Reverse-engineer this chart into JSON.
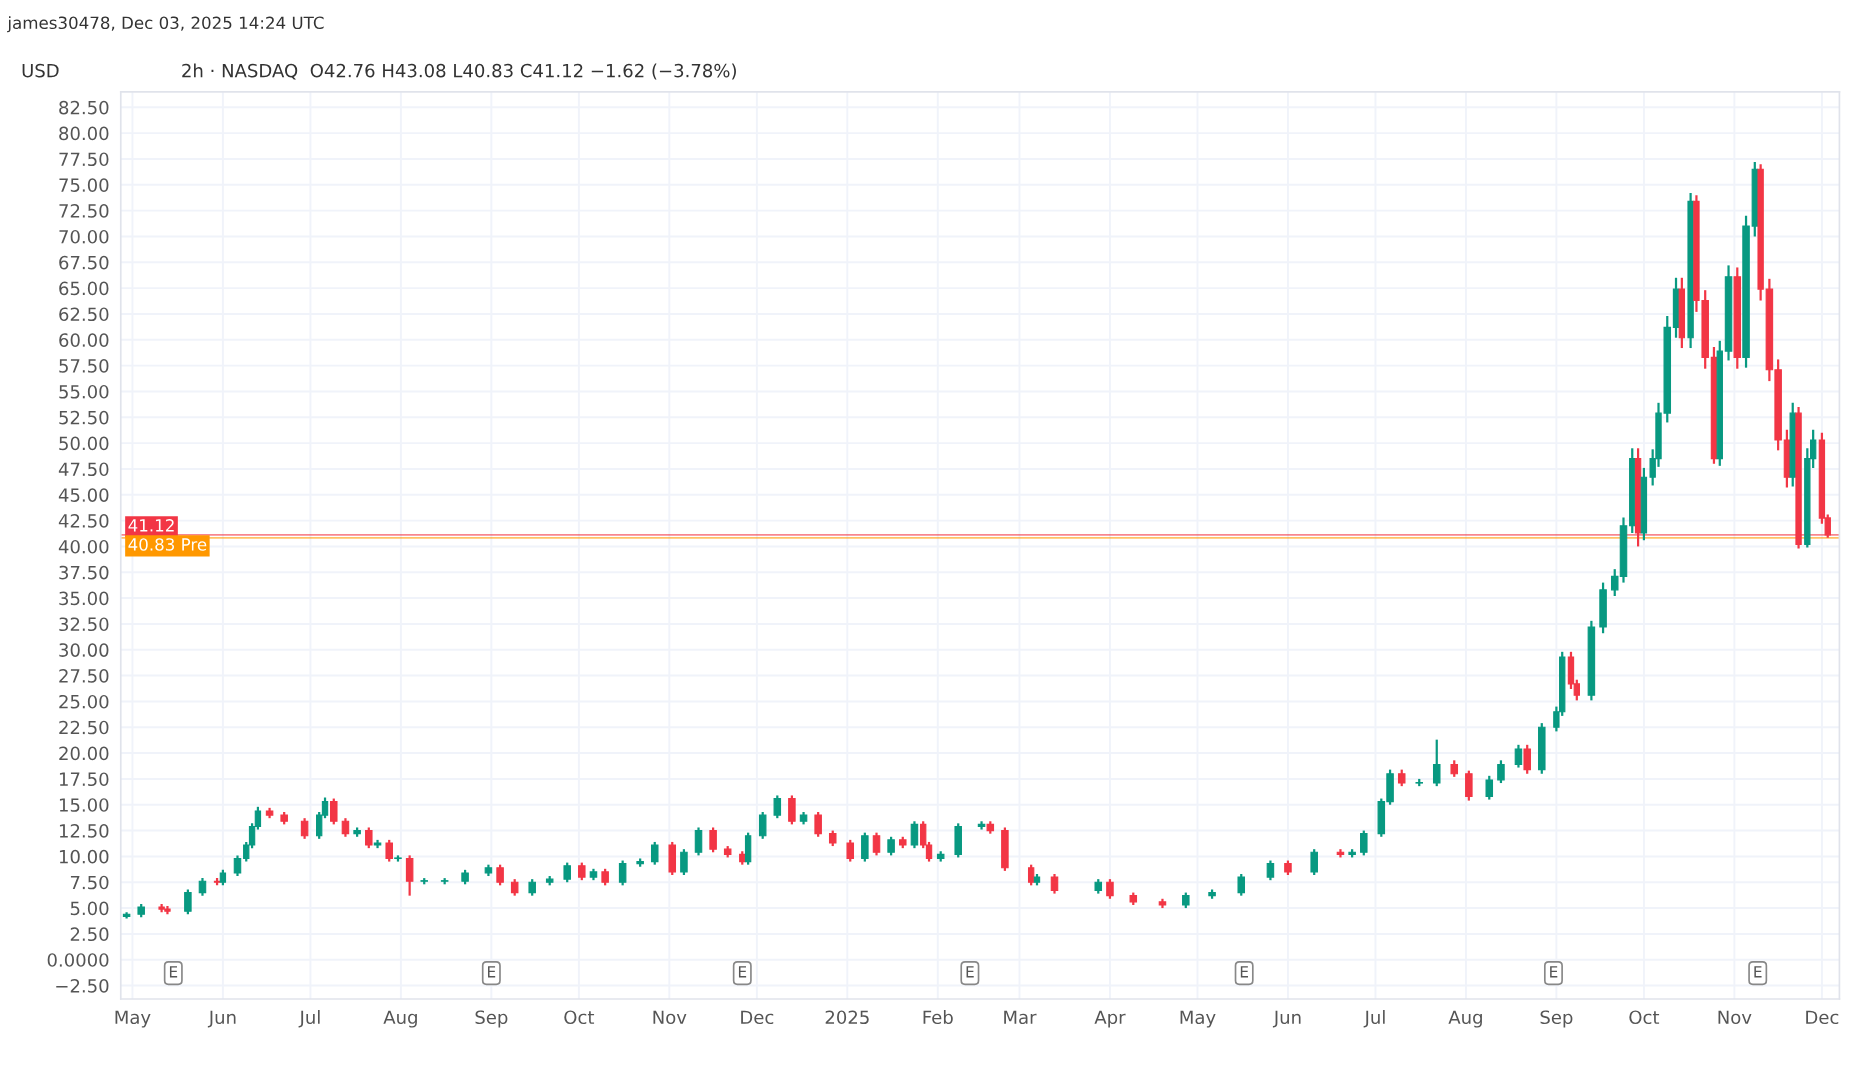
{
  "chart_data": {
    "type": "candlestick",
    "title": "2h · NASDAQ  O42.76 H43.08 L40.83 C41.12 −1.62 (−3.78%)",
    "subtitle": "james30478, Dec 03, 2025 14:24 UTC",
    "ylabel": "USD",
    "x": [
      "2024-04-29",
      "2024-05-04",
      "2024-05-11",
      "2024-05-13",
      "2024-05-20",
      "2024-05-25",
      "2024-05-30",
      "2024-06-01",
      "2024-06-06",
      "2024-06-09",
      "2024-06-11",
      "2024-06-13",
      "2024-06-17",
      "2024-06-22",
      "2024-06-29",
      "2024-07-04",
      "2024-07-06",
      "2024-07-09",
      "2024-07-13",
      "2024-07-17",
      "2024-07-21",
      "2024-07-24",
      "2024-07-28",
      "2024-07-31",
      "2024-08-04",
      "2024-08-09",
      "2024-08-16",
      "2024-08-23",
      "2024-08-31",
      "2024-09-04",
      "2024-09-09",
      "2024-09-15",
      "2024-09-21",
      "2024-09-27",
      "2024-10-02",
      "2024-10-06",
      "2024-10-10",
      "2024-10-16",
      "2024-10-22",
      "2024-10-27",
      "2024-11-02",
      "2024-11-06",
      "2024-11-11",
      "2024-11-16",
      "2024-11-21",
      "2024-11-26",
      "2024-11-28",
      "2024-12-03",
      "2024-12-08",
      "2024-12-13",
      "2024-12-17",
      "2024-12-22",
      "2024-12-27",
      "2025-01-02",
      "2025-01-07",
      "2025-01-11",
      "2025-01-16",
      "2025-01-20",
      "2025-01-24",
      "2025-01-27",
      "2025-01-29",
      "2025-02-02",
      "2025-02-08",
      "2025-02-16",
      "2025-02-19",
      "2025-02-24",
      "2025-03-05",
      "2025-03-07",
      "2025-03-13",
      "2025-03-28",
      "2025-04-01",
      "2025-04-09",
      "2025-04-19",
      "2025-04-27",
      "2025-05-06",
      "2025-05-16",
      "2025-05-26",
      "2025-06-01",
      "2025-06-10",
      "2025-06-19",
      "2025-06-23",
      "2025-06-27",
      "2025-07-03",
      "2025-07-06",
      "2025-07-10",
      "2025-07-16",
      "2025-07-22",
      "2025-07-28",
      "2025-08-02",
      "2025-08-09",
      "2025-08-13",
      "2025-08-19",
      "2025-08-22",
      "2025-08-27",
      "2025-09-01",
      "2025-09-03",
      "2025-09-06",
      "2025-09-08",
      "2025-09-13",
      "2025-09-17",
      "2025-09-21",
      "2025-09-24",
      "2025-09-27",
      "2025-09-29",
      "2025-10-01",
      "2025-10-04",
      "2025-10-06",
      "2025-10-09",
      "2025-10-12",
      "2025-10-14",
      "2025-10-17",
      "2025-10-19",
      "2025-10-22",
      "2025-10-25",
      "2025-10-27",
      "2025-10-30",
      "2025-11-02",
      "2025-11-05",
      "2025-11-08",
      "2025-11-10",
      "2025-11-13",
      "2025-11-16",
      "2025-11-19",
      "2025-11-21",
      "2025-11-23",
      "2025-11-26",
      "2025-11-28",
      "2025-12-01",
      "2025-12-03"
    ],
    "ohlc": [
      [
        4.2,
        4.6,
        4.0,
        4.4
      ],
      [
        4.4,
        5.4,
        4.1,
        5.1
      ],
      [
        5.1,
        5.4,
        4.6,
        4.9
      ],
      [
        4.9,
        5.2,
        4.4,
        4.7
      ],
      [
        4.7,
        6.8,
        4.4,
        6.5
      ],
      [
        6.5,
        7.9,
        6.2,
        7.6
      ],
      [
        7.6,
        7.9,
        7.2,
        7.5
      ],
      [
        7.5,
        8.7,
        7.2,
        8.4
      ],
      [
        8.4,
        10.1,
        8.1,
        9.8
      ],
      [
        9.8,
        11.4,
        9.5,
        11.1
      ],
      [
        11.1,
        13.2,
        10.8,
        12.9
      ],
      [
        12.9,
        14.8,
        12.6,
        14.4
      ],
      [
        14.4,
        14.7,
        13.7,
        14.0
      ],
      [
        14.0,
        14.3,
        13.1,
        13.4
      ],
      [
        13.4,
        13.7,
        11.7,
        12.0
      ],
      [
        12.0,
        14.3,
        11.7,
        14.0
      ],
      [
        14.0,
        15.7,
        13.7,
        15.3
      ],
      [
        15.3,
        15.6,
        13.1,
        13.4
      ],
      [
        13.4,
        13.7,
        11.9,
        12.2
      ],
      [
        12.2,
        12.8,
        11.9,
        12.5
      ],
      [
        12.5,
        12.8,
        10.8,
        11.1
      ],
      [
        11.1,
        11.6,
        10.8,
        11.3
      ],
      [
        11.3,
        11.6,
        9.5,
        9.8
      ],
      [
        9.8,
        10.1,
        9.5,
        9.8
      ],
      [
        9.8,
        10.1,
        6.2,
        7.6
      ],
      [
        7.6,
        7.9,
        7.3,
        7.6
      ],
      [
        7.6,
        7.9,
        7.3,
        7.6
      ],
      [
        7.6,
        8.7,
        7.3,
        8.4
      ],
      [
        8.4,
        9.2,
        8.1,
        8.9
      ],
      [
        8.9,
        9.2,
        7.2,
        7.5
      ],
      [
        7.5,
        7.8,
        6.2,
        6.5
      ],
      [
        6.5,
        7.8,
        6.2,
        7.5
      ],
      [
        7.5,
        8.1,
        7.2,
        7.8
      ],
      [
        7.8,
        9.4,
        7.5,
        9.1
      ],
      [
        9.1,
        9.4,
        7.7,
        8.0
      ],
      [
        8.0,
        8.8,
        7.7,
        8.5
      ],
      [
        8.5,
        8.8,
        7.2,
        7.5
      ],
      [
        7.5,
        9.6,
        7.2,
        9.3
      ],
      [
        9.3,
        9.8,
        9.0,
        9.5
      ],
      [
        9.5,
        11.4,
        9.2,
        11.1
      ],
      [
        11.1,
        11.4,
        8.2,
        8.5
      ],
      [
        8.5,
        10.7,
        8.2,
        10.4
      ],
      [
        10.4,
        12.8,
        10.1,
        12.5
      ],
      [
        12.5,
        12.8,
        10.4,
        10.7
      ],
      [
        10.7,
        11.0,
        9.9,
        10.2
      ],
      [
        10.2,
        10.5,
        9.2,
        9.5
      ],
      [
        9.5,
        12.3,
        9.2,
        12.0
      ],
      [
        12.0,
        14.3,
        11.7,
        14.0
      ],
      [
        14.0,
        15.9,
        13.7,
        15.6
      ],
      [
        15.6,
        15.9,
        13.1,
        13.4
      ],
      [
        13.4,
        14.3,
        13.1,
        14.0
      ],
      [
        14.0,
        14.3,
        11.9,
        12.2
      ],
      [
        12.2,
        12.5,
        11.0,
        11.3
      ],
      [
        11.3,
        11.6,
        9.5,
        9.8
      ],
      [
        9.8,
        12.3,
        9.5,
        12.0
      ],
      [
        12.0,
        12.3,
        10.1,
        10.4
      ],
      [
        10.4,
        11.9,
        10.1,
        11.6
      ],
      [
        11.6,
        11.9,
        10.8,
        11.1
      ],
      [
        11.1,
        13.4,
        10.8,
        13.1
      ],
      [
        13.1,
        13.4,
        10.8,
        11.1
      ],
      [
        11.1,
        11.4,
        9.5,
        9.8
      ],
      [
        9.8,
        10.5,
        9.5,
        10.2
      ],
      [
        10.2,
        13.2,
        9.9,
        12.9
      ],
      [
        12.9,
        13.4,
        12.6,
        13.1
      ],
      [
        13.1,
        13.4,
        12.2,
        12.5
      ],
      [
        12.5,
        12.8,
        8.6,
        8.9
      ],
      [
        8.9,
        9.2,
        7.2,
        7.5
      ],
      [
        7.5,
        8.3,
        7.2,
        8.0
      ],
      [
        8.0,
        8.3,
        6.4,
        6.7
      ],
      [
        6.7,
        7.8,
        6.4,
        7.5
      ],
      [
        7.5,
        7.8,
        5.9,
        6.2
      ],
      [
        6.2,
        6.5,
        5.3,
        5.6
      ],
      [
        5.6,
        5.9,
        5.0,
        5.3
      ],
      [
        5.3,
        6.5,
        5.0,
        6.2
      ],
      [
        6.2,
        6.8,
        5.9,
        6.5
      ],
      [
        6.5,
        8.3,
        6.2,
        8.0
      ],
      [
        8.0,
        9.6,
        7.7,
        9.3
      ],
      [
        9.3,
        9.6,
        8.2,
        8.5
      ],
      [
        8.5,
        10.7,
        8.2,
        10.4
      ],
      [
        10.4,
        10.7,
        9.9,
        10.2
      ],
      [
        10.2,
        10.7,
        9.9,
        10.4
      ],
      [
        10.4,
        12.5,
        10.1,
        12.2
      ],
      [
        12.2,
        15.6,
        11.9,
        15.3
      ],
      [
        15.3,
        18.4,
        15.0,
        18.0
      ],
      [
        18.0,
        18.4,
        16.8,
        17.1
      ],
      [
        17.1,
        17.5,
        16.8,
        17.1
      ],
      [
        17.1,
        21.3,
        16.8,
        18.9
      ],
      [
        18.9,
        19.3,
        17.7,
        18.0
      ],
      [
        18.0,
        18.3,
        15.4,
        15.8
      ],
      [
        15.8,
        17.8,
        15.5,
        17.4
      ],
      [
        17.4,
        19.3,
        17.1,
        18.9
      ],
      [
        18.9,
        20.8,
        18.6,
        20.4
      ],
      [
        20.4,
        20.8,
        18.0,
        18.4
      ],
      [
        18.4,
        22.9,
        18.0,
        22.5
      ],
      [
        22.5,
        24.5,
        22.1,
        24.0
      ],
      [
        24.0,
        29.8,
        23.6,
        29.3
      ],
      [
        29.3,
        29.8,
        26.2,
        26.7
      ],
      [
        26.7,
        27.1,
        25.1,
        25.6
      ],
      [
        25.6,
        32.8,
        25.1,
        32.2
      ],
      [
        32.2,
        36.5,
        31.6,
        35.8
      ],
      [
        35.8,
        37.8,
        35.2,
        37.1
      ],
      [
        37.1,
        42.8,
        36.5,
        42.0
      ],
      [
        42.0,
        49.5,
        41.3,
        48.5
      ],
      [
        48.5,
        49.5,
        40.0,
        41.3
      ],
      [
        41.3,
        47.6,
        40.6,
        46.7
      ],
      [
        46.7,
        49.4,
        45.9,
        48.5
      ],
      [
        48.5,
        53.9,
        47.7,
        52.9
      ],
      [
        52.9,
        62.3,
        52.0,
        61.2
      ],
      [
        61.2,
        66.0,
        60.2,
        64.9
      ],
      [
        64.9,
        66.0,
        59.2,
        60.2
      ],
      [
        60.2,
        74.2,
        59.2,
        73.4
      ],
      [
        73.4,
        74.0,
        62.7,
        63.8
      ],
      [
        63.8,
        64.8,
        57.2,
        58.3
      ],
      [
        58.3,
        59.3,
        48.0,
        48.5
      ],
      [
        48.5,
        59.9,
        47.8,
        58.9
      ],
      [
        58.9,
        67.2,
        58.0,
        66.1
      ],
      [
        66.1,
        67.0,
        57.2,
        58.3
      ],
      [
        58.3,
        72.0,
        57.3,
        71.0
      ],
      [
        71.0,
        77.2,
        70.0,
        76.5
      ],
      [
        76.5,
        77.0,
        63.8,
        64.9
      ],
      [
        64.9,
        65.9,
        56.0,
        57.1
      ],
      [
        57.1,
        58.1,
        49.3,
        50.3
      ],
      [
        50.3,
        51.3,
        45.7,
        46.7
      ],
      [
        46.7,
        53.9,
        45.8,
        52.9
      ],
      [
        52.9,
        53.5,
        39.8,
        40.2
      ],
      [
        40.2,
        49.5,
        39.9,
        48.5
      ],
      [
        48.5,
        51.3,
        47.6,
        50.3
      ],
      [
        50.3,
        51.0,
        42.2,
        42.74
      ],
      [
        42.76,
        43.08,
        40.83,
        41.12
      ]
    ],
    "colors": [
      "#089981",
      "#089981",
      "#f23645",
      "#f23645",
      "#089981",
      "#089981",
      "#f23645",
      "#089981",
      "#089981",
      "#089981",
      "#089981",
      "#089981",
      "#f23645",
      "#f23645",
      "#f23645",
      "#089981",
      "#089981",
      "#f23645",
      "#f23645",
      "#089981",
      "#f23645",
      "#089981",
      "#f23645",
      "#089981",
      "#f23645",
      "#089981",
      "#089981",
      "#089981",
      "#089981",
      "#f23645",
      "#f23645",
      "#089981",
      "#089981",
      "#089981",
      "#f23645",
      "#089981",
      "#f23645",
      "#089981",
      "#089981",
      "#089981",
      "#f23645",
      "#089981",
      "#089981",
      "#f23645",
      "#f23645",
      "#f23645",
      "#089981",
      "#089981",
      "#089981",
      "#f23645",
      "#089981",
      "#f23645",
      "#f23645",
      "#f23645",
      "#089981",
      "#f23645",
      "#089981",
      "#f23645",
      "#089981",
      "#f23645",
      "#f23645",
      "#089981",
      "#089981",
      "#089981",
      "#f23645",
      "#f23645",
      "#f23645",
      "#089981",
      "#f23645",
      "#089981",
      "#f23645",
      "#f23645",
      "#f23645",
      "#089981",
      "#089981",
      "#089981",
      "#089981",
      "#f23645",
      "#089981",
      "#f23645",
      "#089981",
      "#089981",
      "#089981",
      "#089981",
      "#f23645",
      "#089981",
      "#089981",
      "#f23645",
      "#f23645",
      "#089981",
      "#089981",
      "#089981",
      "#f23645",
      "#089981",
      "#089981",
      "#089981",
      "#f23645",
      "#f23645",
      "#089981",
      "#089981",
      "#089981",
      "#089981",
      "#089981",
      "#f23645",
      "#089981",
      "#089981",
      "#089981",
      "#089981",
      "#089981",
      "#f23645",
      "#089981",
      "#f23645",
      "#f23645",
      "#f23645",
      "#089981",
      "#089981",
      "#f23645",
      "#089981",
      "#089981",
      "#f23645",
      "#f23645",
      "#f23645",
      "#f23645",
      "#089981",
      "#f23645",
      "#089981",
      "#089981",
      "#f23645",
      "#f23645"
    ],
    "xlim": [
      "2024-04-27",
      "2025-12-07"
    ],
    "xticks": [
      {
        "value": "2024-05-01",
        "label": "May"
      },
      {
        "value": "2024-06-01",
        "label": "Jun"
      },
      {
        "value": "2024-07-01",
        "label": "Jul"
      },
      {
        "value": "2024-08-01",
        "label": "Aug"
      },
      {
        "value": "2024-09-01",
        "label": "Sep"
      },
      {
        "value": "2024-10-01",
        "label": "Oct"
      },
      {
        "value": "2024-11-01",
        "label": "Nov"
      },
      {
        "value": "2024-12-01",
        "label": "Dec"
      },
      {
        "value": "2025-01-01",
        "label": "2025"
      },
      {
        "value": "2025-02-01",
        "label": "Feb"
      },
      {
        "value": "2025-03-01",
        "label": "Mar"
      },
      {
        "value": "2025-04-01",
        "label": "Apr"
      },
      {
        "value": "2025-05-01",
        "label": "May"
      },
      {
        "value": "2025-06-01",
        "label": "Jun"
      },
      {
        "value": "2025-07-01",
        "label": "Jul"
      },
      {
        "value": "2025-08-01",
        "label": "Aug"
      },
      {
        "value": "2025-09-01",
        "label": "Sep"
      },
      {
        "value": "2025-10-01",
        "label": "Oct"
      },
      {
        "value": "2025-11-01",
        "label": "Nov"
      },
      {
        "value": "2025-12-01",
        "label": "Dec"
      }
    ],
    "ylim": [
      -3.8,
      84
    ],
    "yticks": [
      {
        "value": -2.5,
        "label": "−2.50"
      },
      {
        "value": 0,
        "label": "0.0000"
      },
      {
        "value": 2.5,
        "label": "2.50"
      },
      {
        "value": 5,
        "label": "5.00"
      },
      {
        "value": 7.5,
        "label": "7.50"
      },
      {
        "value": 10,
        "label": "10.00"
      },
      {
        "value": 12.5,
        "label": "12.50"
      },
      {
        "value": 15,
        "label": "15.00"
      },
      {
        "value": 17.5,
        "label": "17.50"
      },
      {
        "value": 20,
        "label": "20.00"
      },
      {
        "value": 22.5,
        "label": "22.50"
      },
      {
        "value": 25,
        "label": "25.00"
      },
      {
        "value": 27.5,
        "label": "27.50"
      },
      {
        "value": 30,
        "label": "30.00"
      },
      {
        "value": 32.5,
        "label": "32.50"
      },
      {
        "value": 35,
        "label": "35.00"
      },
      {
        "value": 37.5,
        "label": "37.50"
      },
      {
        "value": 40,
        "label": "40.00"
      },
      {
        "value": 42.5,
        "label": "42.50"
      },
      {
        "value": 45,
        "label": "45.00"
      },
      {
        "value": 47.5,
        "label": "47.50"
      },
      {
        "value": 50,
        "label": "50.00"
      },
      {
        "value": 52.5,
        "label": "52.50"
      },
      {
        "value": 55,
        "label": "55.00"
      },
      {
        "value": 57.5,
        "label": "57.50"
      },
      {
        "value": 60,
        "label": "60.00"
      },
      {
        "value": 62.5,
        "label": "62.50"
      },
      {
        "value": 65,
        "label": "65.00"
      },
      {
        "value": 67.5,
        "label": "67.50"
      },
      {
        "value": 70,
        "label": "70.00"
      },
      {
        "value": 72.5,
        "label": "72.50"
      },
      {
        "value": 75,
        "label": "75.00"
      },
      {
        "value": 77.5,
        "label": "77.50"
      },
      {
        "value": 80,
        "label": "80.00"
      },
      {
        "value": 82.5,
        "label": "82.50"
      }
    ],
    "grid": true,
    "ref_lines": [
      {
        "axis": "y",
        "value": 41.12,
        "label": "41.12",
        "color": "#f23645"
      },
      {
        "axis": "y",
        "value": 40.83,
        "label": "40.83 Pre",
        "color": "#ff9800"
      }
    ],
    "annotations": [
      {
        "text": "E",
        "x": "2024-05-15",
        "y": -1.3
      },
      {
        "text": "E",
        "x": "2024-09-01",
        "y": -1.3
      },
      {
        "text": "E",
        "x": "2024-11-26",
        "y": -1.3
      },
      {
        "text": "E",
        "x": "2025-02-12",
        "y": -1.3
      },
      {
        "text": "E",
        "x": "2025-05-17",
        "y": -1.3
      },
      {
        "text": "E",
        "x": "2025-08-31",
        "y": -1.3
      },
      {
        "text": "E",
        "x": "2025-11-09",
        "y": -1.3
      }
    ]
  }
}
